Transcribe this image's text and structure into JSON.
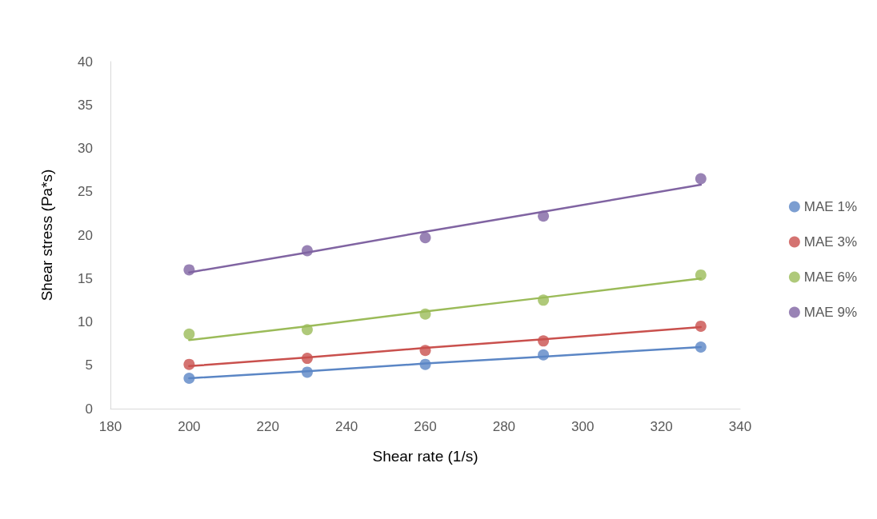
{
  "chart_data": {
    "type": "scatter",
    "xlabel": "Shear rate (1/s)",
    "ylabel": "Shear stress (Pa*s)",
    "x": [
      200,
      230,
      260,
      290,
      330
    ],
    "series": [
      {
        "name": "MAE 1%",
        "color": "#5b86c5",
        "values": [
          3.5,
          4.2,
          5.1,
          6.2,
          7.1
        ]
      },
      {
        "name": "MAE 3%",
        "color": "#c9504d",
        "values": [
          5.1,
          5.8,
          6.7,
          7.8,
          9.5
        ]
      },
      {
        "name": "MAE 6%",
        "color": "#9bbb59",
        "values": [
          8.6,
          9.1,
          10.9,
          12.5,
          15.4
        ]
      },
      {
        "name": "MAE 9%",
        "color": "#8064a2",
        "values": [
          16.0,
          18.2,
          19.7,
          22.2,
          26.5
        ]
      },
      {
        "type": "line",
        "color": "#5b86c5",
        "values": [
          3.5,
          4.3,
          5.2,
          6.0,
          7.1
        ],
        "marker": "none"
      },
      {
        "type": "line",
        "color": "#c9504d",
        "values": [
          4.9,
          5.9,
          7.0,
          8.0,
          9.4
        ],
        "marker": "none"
      },
      {
        "type": "line",
        "color": "#9bbb59",
        "values": [
          7.9,
          9.5,
          11.2,
          12.8,
          15.0
        ],
        "marker": "none"
      },
      {
        "type": "line",
        "color": "#8064a2",
        "values": [
          15.7,
          18.0,
          20.4,
          22.7,
          25.8
        ],
        "marker": "none"
      }
    ],
    "xlim": [
      180,
      340
    ],
    "xticks": [
      180,
      200,
      220,
      240,
      260,
      280,
      300,
      320,
      340
    ],
    "ylim": [
      0,
      40
    ],
    "yticks": [
      0,
      5,
      10,
      15,
      20,
      25,
      30,
      35,
      40
    ],
    "grid": false,
    "legend": "right",
    "marker": "circle",
    "line_style": "solid"
  }
}
